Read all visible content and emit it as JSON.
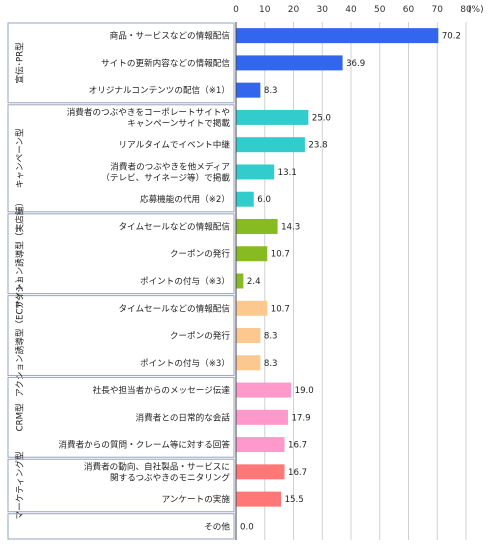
{
  "chart_data": {
    "type": "bar",
    "orientation": "horizontal",
    "unit_label": "(%)",
    "xlim": [
      0,
      80
    ],
    "x_ticks": [
      "0",
      "10",
      "20",
      "30",
      "40",
      "50",
      "60",
      "70",
      "80"
    ],
    "grid": true,
    "groups": [
      {
        "name": "宣伝･PR型",
        "color": "#3366ee",
        "items": [
          {
            "label": [
              "商品・サービスなどの情報配信"
            ],
            "value": 70.2,
            "value_text": "70.2"
          },
          {
            "label": [
              "サイトの更新内容などの情報配信"
            ],
            "value": 36.9,
            "value_text": "36.9"
          },
          {
            "label": [
              "オリジナルコンテンツの配信（※1）"
            ],
            "value": 8.3,
            "value_text": "8.3"
          }
        ]
      },
      {
        "name": "キャンペーン型",
        "color": "#33cccc",
        "items": [
          {
            "label": [
              "消費者のつぶやきをコーポレートサイトや",
              "キャンペーンサイトで掲載"
            ],
            "value": 25.0,
            "value_text": "25.0"
          },
          {
            "label": [
              "リアルタイムでイベント中継"
            ],
            "value": 23.8,
            "value_text": "23.8"
          },
          {
            "label": [
              "消費者のつぶやきを他メディア",
              "（テレビ、サイネージ等）で掲載"
            ],
            "value": 13.1,
            "value_text": "13.1"
          },
          {
            "label": [
              "応募機能の代用（※2）"
            ],
            "value": 6.0,
            "value_text": "6.0"
          }
        ]
      },
      {
        "name": "アクション誘導型（実店舗）",
        "color": "#88bb22",
        "items": [
          {
            "label": [
              "タイムセールなどの情報配信"
            ],
            "value": 14.3,
            "value_text": "14.3"
          },
          {
            "label": [
              "クーポンの発行"
            ],
            "value": 10.7,
            "value_text": "10.7"
          },
          {
            "label": [
              "ポイントの付与（※3）"
            ],
            "value": 2.4,
            "value_text": "2.4"
          }
        ]
      },
      {
        "name": "アクション誘導型（ECサイト）",
        "color": "#fcc890",
        "items": [
          {
            "label": [
              "タイムセールなどの情報配信"
            ],
            "value": 10.7,
            "value_text": "10.7"
          },
          {
            "label": [
              "クーポンの発行"
            ],
            "value": 8.3,
            "value_text": "8.3"
          },
          {
            "label": [
              "ポイントの付与（※3）"
            ],
            "value": 8.3,
            "value_text": "8.3"
          }
        ]
      },
      {
        "name": "CRM型",
        "color": "#ff99cc",
        "items": [
          {
            "label": [
              "社長や担当者からのメッセージ伝達"
            ],
            "value": 19.0,
            "value_text": "19.0"
          },
          {
            "label": [
              "消費者との日常的な会話"
            ],
            "value": 17.9,
            "value_text": "17.9"
          },
          {
            "label": [
              "消費者からの質問・クレーム等に対する回答"
            ],
            "value": 16.7,
            "value_text": "16.7"
          }
        ]
      },
      {
        "name": "マーケティング型",
        "color": "#ff7777",
        "items": [
          {
            "label": [
              "消費者の動向、自社製品・サービスに",
              "関するつぶやきのモニタリング"
            ],
            "value": 16.7,
            "value_text": "16.7"
          },
          {
            "label": [
              "アンケートの実施"
            ],
            "value": 15.5,
            "value_text": "15.5"
          }
        ]
      },
      {
        "name": "",
        "color": "#cccccc",
        "items": [
          {
            "label": [
              "その他"
            ],
            "value": 0.0,
            "value_text": "0.0"
          }
        ]
      }
    ]
  }
}
